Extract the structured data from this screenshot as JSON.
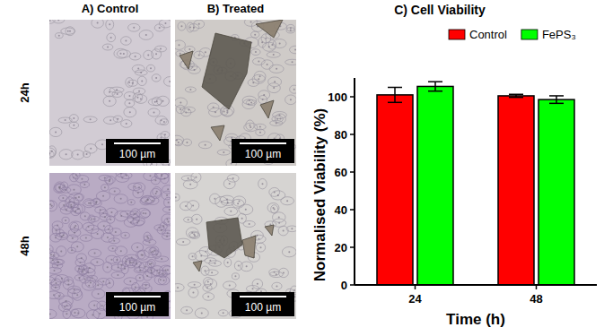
{
  "micrographs": {
    "columns": [
      "A) Control",
      "B) Treated"
    ],
    "rows": [
      "24h",
      "48h"
    ],
    "scale_bars": [
      [
        "100 µm",
        "100 µm"
      ],
      [
        "100 µm",
        "100 µm"
      ]
    ]
  },
  "chart_data": {
    "type": "bar",
    "title": "C) Cell Viability",
    "x_label": "Time (h)",
    "y_label": "Normalised Viability (%)",
    "categories": [
      "24",
      "48"
    ],
    "series": [
      {
        "name": "Control",
        "color": "#ff0000",
        "values": [
          101,
          100.5
        ],
        "errors": [
          4,
          0.8
        ]
      },
      {
        "name": "FePS₃",
        "color": "#00ff00",
        "values": [
          105.5,
          98.5
        ],
        "errors": [
          2.5,
          2
        ]
      }
    ],
    "ylim": [
      0,
      110
    ],
    "yticks": [
      0,
      20,
      40,
      60,
      80,
      100
    ],
    "legend": "top",
    "grid": false
  }
}
